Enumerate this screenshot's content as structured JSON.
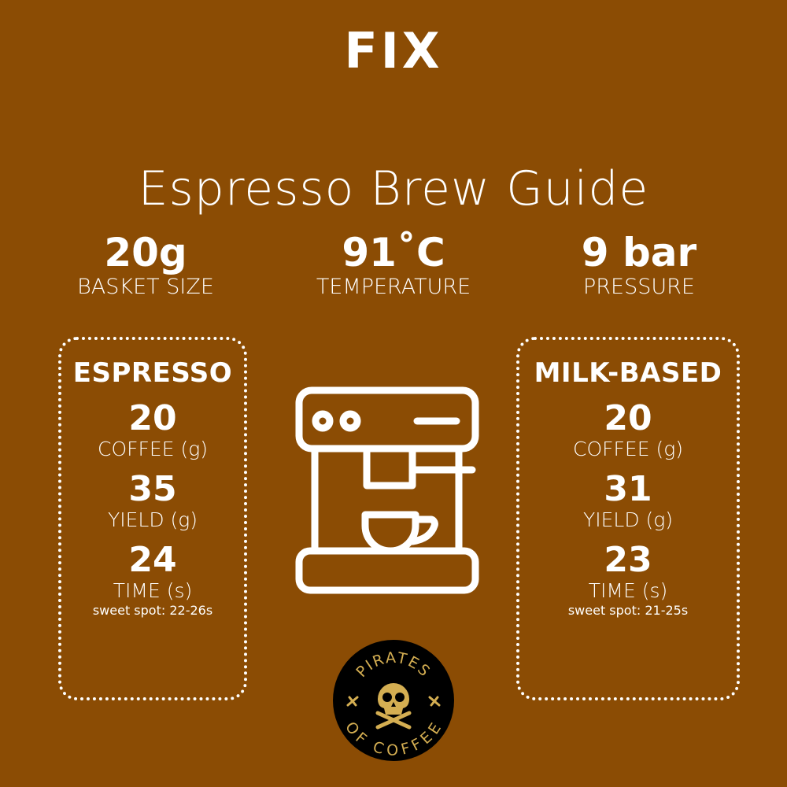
{
  "header": {
    "badge": "FIX",
    "title": "Espresso Brew Guide"
  },
  "stats": [
    {
      "value": "20g",
      "label": "BASKET SIZE"
    },
    {
      "value": "91˚C",
      "label": "TEMPERATURE"
    },
    {
      "value": "9 bar",
      "label": "PRESSURE"
    }
  ],
  "espresso": {
    "title": "ESPRESSO",
    "coffee": "20",
    "coffee_label": "COFFEE (g)",
    "yield": "35",
    "yield_label": "YIELD (g)",
    "time": "24",
    "time_label": "TIME (s)",
    "sweet_spot": "sweet spot: 22-26s"
  },
  "milk": {
    "title": "MILK-BASED",
    "coffee": "20",
    "coffee_label": "COFFEE (g)",
    "yield": "31",
    "yield_label": "YIELD (g)",
    "time": "23",
    "time_label": "TIME (s)",
    "sweet_spot": "sweet spot: 21-25s"
  },
  "logo": {
    "top_text": "PIRATES",
    "bottom_text": "OF COFFEE"
  },
  "colors": {
    "background": "#8B4C04",
    "logo_gold": "#D4AE52",
    "logo_bg": "#000000"
  },
  "icons": {
    "center": "espresso-machine-icon",
    "logo": "skull-crossbones-icon"
  }
}
